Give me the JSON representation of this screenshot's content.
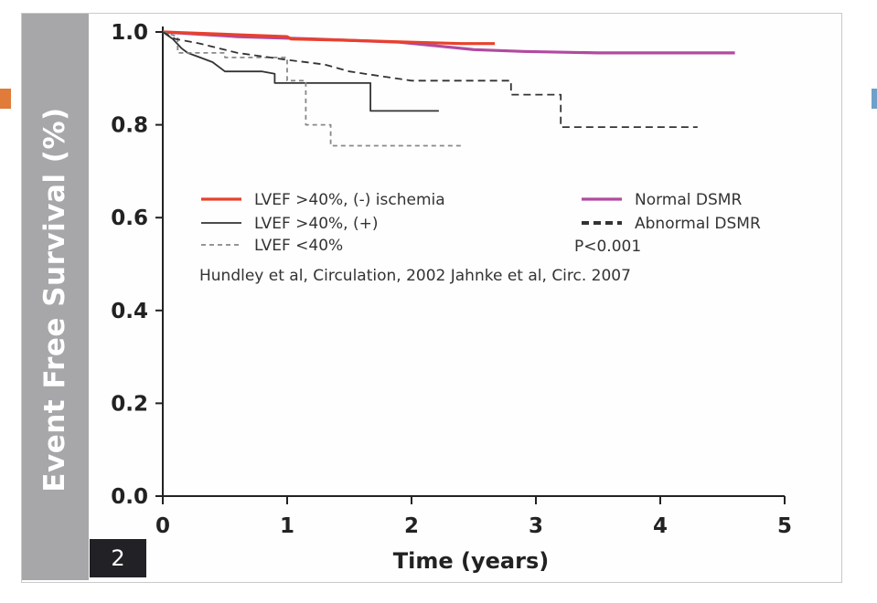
{
  "chart_data": {
    "type": "line",
    "ylabel": "Event Free Survival (%)",
    "xlabel": "Time (years)",
    "figure_number": "2",
    "xlim": [
      0,
      5
    ],
    "ylim": [
      0.0,
      1.0
    ],
    "x_ticks": [
      "0",
      "1",
      "2",
      "3",
      "4",
      "5"
    ],
    "y_ticks": [
      "0.0",
      "0.2",
      "0.4",
      "0.6",
      "0.8",
      "1.0"
    ],
    "grid": false,
    "legend_position": "center",
    "series": [
      {
        "name": "LVEF >40%, (-) ischemia",
        "color": "#e8412b",
        "style": "solid",
        "points": [
          [
            0,
            1.0
          ],
          [
            0.5,
            0.995
          ],
          [
            1.0,
            0.99
          ],
          [
            1.03,
            0.985
          ],
          [
            1.5,
            0.982
          ],
          [
            2.0,
            0.978
          ],
          [
            2.4,
            0.975
          ],
          [
            2.67,
            0.975
          ]
        ]
      },
      {
        "name": "LVEF >40%, (+)",
        "color": "#333333",
        "style": "solid",
        "points": [
          [
            0,
            1.0
          ],
          [
            0.08,
            0.985
          ],
          [
            0.15,
            0.965
          ],
          [
            0.2,
            0.955
          ],
          [
            0.3,
            0.945
          ],
          [
            0.4,
            0.935
          ],
          [
            0.5,
            0.915
          ],
          [
            0.8,
            0.915
          ],
          [
            0.9,
            0.91
          ],
          [
            0.9,
            0.89
          ],
          [
            1.3,
            0.89
          ],
          [
            1.67,
            0.89
          ],
          [
            1.67,
            0.83
          ],
          [
            2.22,
            0.83
          ]
        ]
      },
      {
        "name": "LVEF <40%",
        "color": "#888888",
        "style": "dashed",
        "points": [
          [
            0,
            1.0
          ],
          [
            0.12,
            0.99
          ],
          [
            0.12,
            0.955
          ],
          [
            0.5,
            0.955
          ],
          [
            0.5,
            0.945
          ],
          [
            1.0,
            0.945
          ],
          [
            1.0,
            0.895
          ],
          [
            1.15,
            0.895
          ],
          [
            1.15,
            0.8
          ],
          [
            1.35,
            0.8
          ],
          [
            1.35,
            0.755
          ],
          [
            2.4,
            0.755
          ]
        ]
      },
      {
        "name": "Normal DSMR",
        "color": "#b14aa0",
        "style": "solid",
        "points": [
          [
            0,
            1.0
          ],
          [
            0.6,
            0.99
          ],
          [
            1.2,
            0.985
          ],
          [
            1.9,
            0.978
          ],
          [
            2.2,
            0.97
          ],
          [
            2.5,
            0.962
          ],
          [
            2.9,
            0.958
          ],
          [
            3.5,
            0.955
          ],
          [
            4.6,
            0.955
          ]
        ]
      },
      {
        "name": "Abnormal DSMR",
        "color": "#333333",
        "style": "dotted",
        "points": [
          [
            0,
            1.0
          ],
          [
            0.1,
            0.985
          ],
          [
            0.3,
            0.975
          ],
          [
            0.6,
            0.955
          ],
          [
            1.0,
            0.94
          ],
          [
            1.3,
            0.93
          ],
          [
            1.5,
            0.915
          ],
          [
            1.75,
            0.905
          ],
          [
            2.0,
            0.895
          ],
          [
            2.8,
            0.895
          ],
          [
            2.8,
            0.865
          ],
          [
            3.2,
            0.865
          ],
          [
            3.2,
            0.795
          ],
          [
            4.3,
            0.795
          ]
        ]
      }
    ],
    "annotations": {
      "pvalue": "P<0.001",
      "citation": "Hundley et al, Circulation, 2002 Jahnke et al, Circ. 2007"
    }
  },
  "colors": {
    "ylabel_band": "#a7a7a9",
    "marker_left": "#e07b3a",
    "marker_right": "#6fa0c8"
  }
}
